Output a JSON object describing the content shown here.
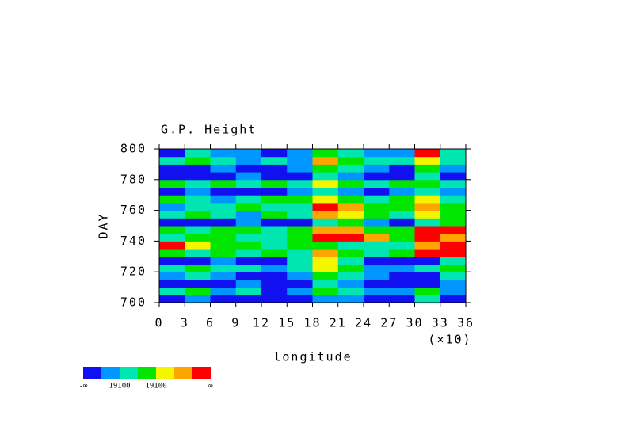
{
  "chart_data": {
    "type": "heatmap",
    "title": "G.P. Height",
    "xlabel": "longitude",
    "x_multiplier": "(×10)",
    "ylabel": "DAY",
    "xlim": [
      0,
      36
    ],
    "xticks": [
      0,
      3,
      6,
      9,
      12,
      15,
      18,
      21,
      24,
      27,
      30,
      33,
      36
    ],
    "ylim": [
      700,
      800
    ],
    "yticks": [
      700,
      720,
      740,
      760,
      780,
      800
    ],
    "xbins": [
      0,
      3,
      6,
      9,
      12,
      15,
      18,
      21,
      24,
      27,
      30,
      33,
      36
    ],
    "ybins": [
      700,
      705,
      710,
      715,
      720,
      725,
      730,
      735,
      740,
      745,
      750,
      755,
      760,
      765,
      770,
      775,
      780,
      785,
      790,
      795,
      800
    ],
    "z": [
      [
        0,
        1,
        0,
        0,
        0,
        0,
        1,
        1,
        0,
        0,
        2,
        0
      ],
      [
        2,
        3,
        1,
        2,
        0,
        1,
        3,
        2,
        1,
        1,
        3,
        1
      ],
      [
        0,
        0,
        0,
        1,
        0,
        0,
        2,
        1,
        0,
        0,
        0,
        1
      ],
      [
        1,
        2,
        1,
        0,
        0,
        1,
        3,
        2,
        1,
        0,
        0,
        2
      ],
      [
        2,
        3,
        2,
        2,
        1,
        2,
        4,
        3,
        1,
        1,
        2,
        3
      ],
      [
        0,
        0,
        1,
        0,
        0,
        2,
        4,
        2,
        0,
        0,
        0,
        2
      ],
      [
        3,
        2,
        3,
        2,
        3,
        2,
        5,
        3,
        2,
        3,
        6,
        6
      ],
      [
        6,
        4,
        3,
        3,
        2,
        3,
        3,
        2,
        2,
        2,
        5,
        6
      ],
      [
        2,
        3,
        3,
        2,
        2,
        3,
        6,
        6,
        5,
        3,
        6,
        5
      ],
      [
        3,
        2,
        3,
        3,
        2,
        3,
        5,
        5,
        3,
        3,
        6,
        6
      ],
      [
        0,
        0,
        0,
        1,
        0,
        0,
        2,
        3,
        1,
        0,
        2,
        3
      ],
      [
        2,
        3,
        2,
        1,
        3,
        2,
        5,
        4,
        3,
        2,
        4,
        3
      ],
      [
        1,
        2,
        2,
        3,
        2,
        2,
        6,
        5,
        3,
        3,
        5,
        3
      ],
      [
        3,
        2,
        1,
        2,
        3,
        3,
        4,
        3,
        2,
        3,
        4,
        2
      ],
      [
        0,
        1,
        0,
        0,
        0,
        1,
        2,
        1,
        0,
        1,
        2,
        1
      ],
      [
        3,
        2,
        3,
        2,
        3,
        2,
        4,
        3,
        2,
        3,
        3,
        2
      ],
      [
        0,
        0,
        0,
        1,
        0,
        0,
        2,
        1,
        0,
        0,
        2,
        0
      ],
      [
        0,
        0,
        1,
        0,
        0,
        1,
        3,
        2,
        1,
        0,
        3,
        1
      ],
      [
        2,
        3,
        2,
        1,
        2,
        1,
        5,
        3,
        2,
        2,
        4,
        2
      ],
      [
        0,
        2,
        1,
        1,
        0,
        1,
        3,
        2,
        1,
        1,
        6,
        2
      ]
    ],
    "colors": [
      "#1010f0",
      "#0096ff",
      "#00e6b0",
      "#00e600",
      "#f5f500",
      "#ffa500",
      "#ff0000"
    ],
    "colorbar_labels": [
      "-∞",
      "19100",
      "19100",
      "∞"
    ]
  }
}
